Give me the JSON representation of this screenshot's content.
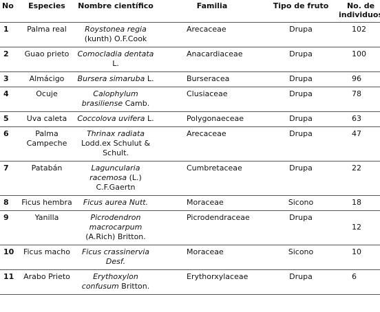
{
  "table": {
    "headers": [
      "No",
      "Especies",
      "Nombre científico",
      "Familia",
      "Tipo de fruto",
      "No. de individuos"
    ],
    "rows": [
      {
        "no": 1,
        "species": "Palma real",
        "sci": "Roystonea regia",
        "author": "(kunth) O.F.Cook",
        "family": "Arecaceae",
        "fruit": "Drupa",
        "count": 102
      },
      {
        "no": 2,
        "species": "Guao prieto",
        "sci": "Comocladia dentata",
        "author": "L.",
        "family": "Anacardiaceae",
        "fruit": "Drupa",
        "count": 100
      },
      {
        "no": 3,
        "species": "Almácigo",
        "sci": "Bursera simaruba",
        "author": "L.",
        "family": "Burseracea",
        "fruit": "Drupa",
        "count": 96
      },
      {
        "no": 4,
        "species": "Ocuje",
        "sci": "Calophylum brasiliense",
        "author": "Camb.",
        "family": "Clusiaceae",
        "fruit": "Drupa",
        "count": 78
      },
      {
        "no": 5,
        "species": "Uva caleta",
        "sci": "Coccolova uvifera",
        "author": "L.",
        "family": "Polygonaeceae",
        "fruit": "Drupa",
        "count": 63
      },
      {
        "no": 6,
        "species": "Palma Campeche",
        "sci": "Thrinax radiata",
        "author": "Lodd.ex Schulut & Schult.",
        "family": "Arecaceae",
        "fruit": "Drupa",
        "count": 47
      },
      {
        "no": 7,
        "species": "Patabán",
        "sci": "Laguncularia racemosa",
        "author": "(L.) C.F.Gaertn",
        "family": "Cumbretaceae",
        "fruit": "Drupa",
        "count": 22
      },
      {
        "no": 8,
        "species": "Ficus hembra",
        "sci": "Ficus aurea Nutt.",
        "family": "Moraceae",
        "fruit": "Sicono",
        "count": 18
      },
      {
        "no": 9,
        "species": "Yanilla",
        "sci": "Picrodendron macrocarpum",
        "author": "(A.Rich) Britton.",
        "family": "Picrodendraceae",
        "fruit": "Drupa",
        "count": 12
      },
      {
        "no": 10,
        "species": "Ficus macho",
        "sci": "Ficus crassinervia Desf.",
        "family": "Moraceae",
        "fruit": "Sicono",
        "count": 10
      },
      {
        "no": 11,
        "species": "Arabo Prieto",
        "sci": "Erythoxylon confusum",
        "author": "Britton.",
        "family": "Erythorxylaceae",
        "fruit": "Drupa",
        "count": 6
      }
    ]
  }
}
